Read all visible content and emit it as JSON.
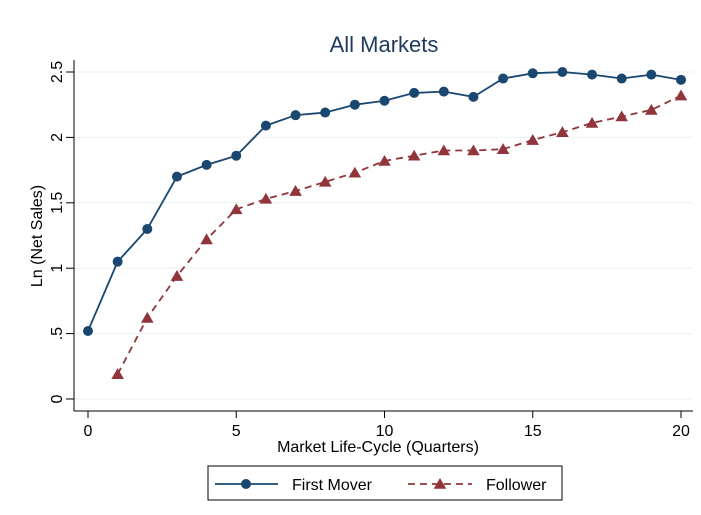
{
  "chart_data": {
    "type": "line",
    "title": "All Markets",
    "xlabel": "Market Life-Cycle (Quarters)",
    "ylabel": "Ln (Net Sales)",
    "xlim": [
      0,
      20
    ],
    "ylim": [
      0,
      2.5
    ],
    "xticks": [
      0,
      5,
      10,
      15,
      20
    ],
    "xtick_labels": [
      "0",
      "5",
      "10",
      "15",
      "20"
    ],
    "yticks": [
      0,
      0.5,
      1,
      1.5,
      2,
      2.5
    ],
    "ytick_labels": [
      "0",
      ".5",
      "1",
      "1.5",
      "2",
      "2.5"
    ],
    "grid": true,
    "legend_position": "bottom",
    "series": [
      {
        "name": "First Mover",
        "color": "#1a476f",
        "marker": "circle",
        "line_style": "solid",
        "x": [
          0,
          1,
          2,
          3,
          4,
          5,
          6,
          7,
          8,
          9,
          10,
          11,
          12,
          13,
          14,
          15,
          16,
          17,
          18,
          19,
          20
        ],
        "values": [
          0.52,
          1.05,
          1.3,
          1.7,
          1.79,
          1.86,
          2.09,
          2.17,
          2.19,
          2.25,
          2.28,
          2.34,
          2.35,
          2.31,
          2.45,
          2.49,
          2.5,
          2.48,
          2.45,
          2.48,
          2.44
        ]
      },
      {
        "name": "Follower",
        "color": "#90353b",
        "marker": "triangle",
        "line_style": "dashed",
        "x": [
          1,
          2,
          3,
          4,
          5,
          6,
          7,
          8,
          9,
          10,
          11,
          12,
          13,
          14,
          15,
          16,
          17,
          18,
          19,
          20
        ],
        "values": [
          0.19,
          0.62,
          0.94,
          1.22,
          1.45,
          1.53,
          1.59,
          1.66,
          1.73,
          1.82,
          1.86,
          1.9,
          1.9,
          1.91,
          1.98,
          2.04,
          2.11,
          2.16,
          2.21,
          2.32
        ]
      }
    ]
  }
}
